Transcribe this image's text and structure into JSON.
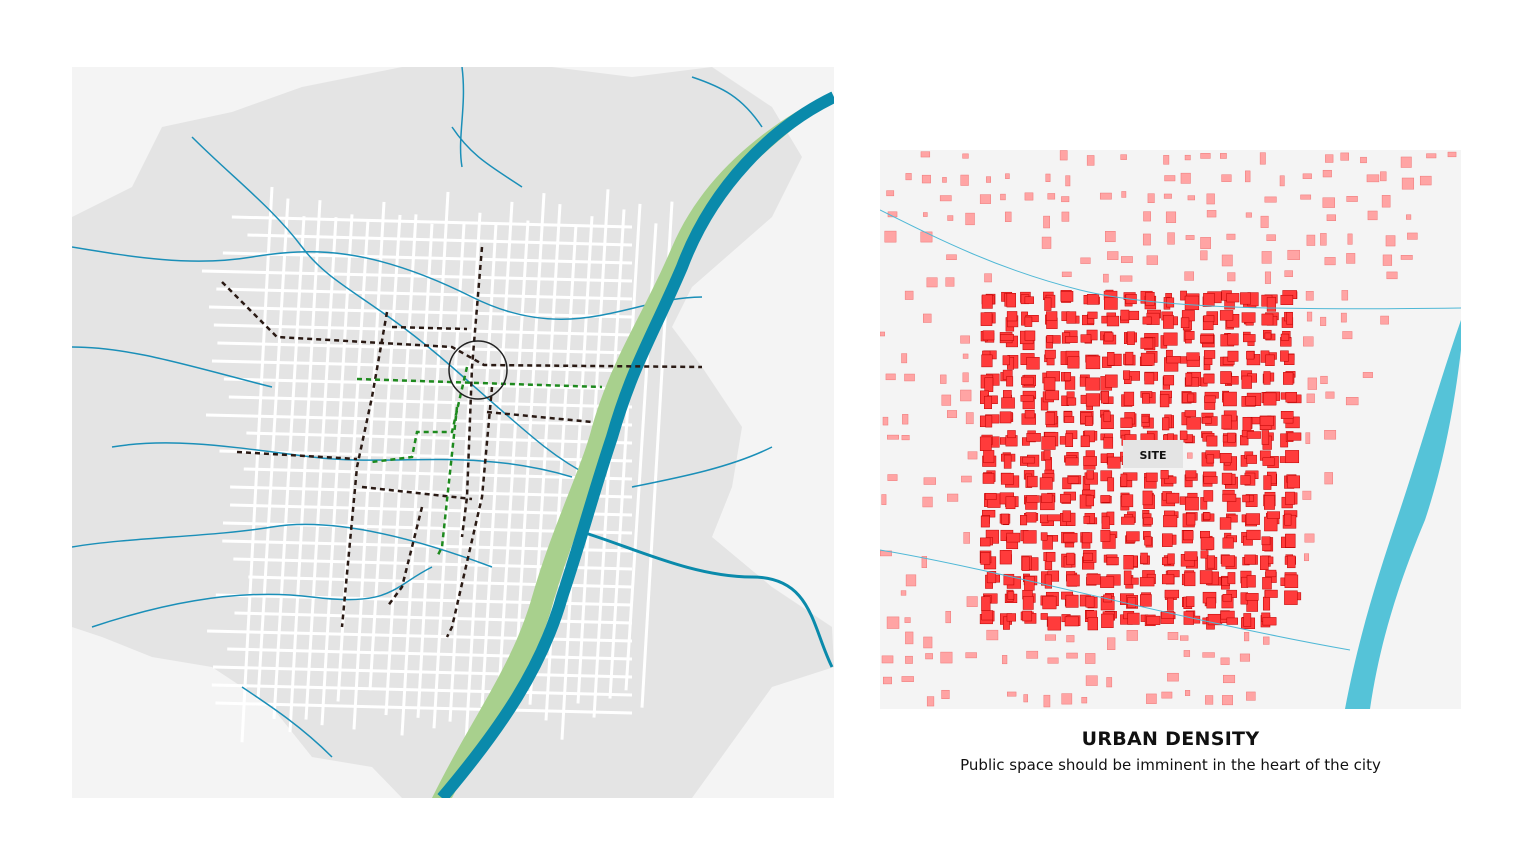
{
  "left_map": {
    "colors": {
      "background": "#f4f4f4",
      "land": "#e4e4e4",
      "roads": "#ffffff",
      "streams": "#1a8fb8",
      "river": "#0a8aab",
      "park": "#a8d08d",
      "route_black": "#2a1a14",
      "route_green": "#1e8a1e"
    },
    "markers": [
      {
        "type": "circle",
        "icon": "focus-circle"
      }
    ]
  },
  "right_map": {
    "site_label": "SITE",
    "colors": {
      "dense_buildings": "#ff3b3b",
      "sparse_buildings": "#ffa4a4",
      "river": "#55c3d8",
      "background": "#f4f4f4"
    }
  },
  "caption": {
    "title": "URBAN DENSITY",
    "subtitle": "Public space should be imminent in the heart of the city"
  }
}
